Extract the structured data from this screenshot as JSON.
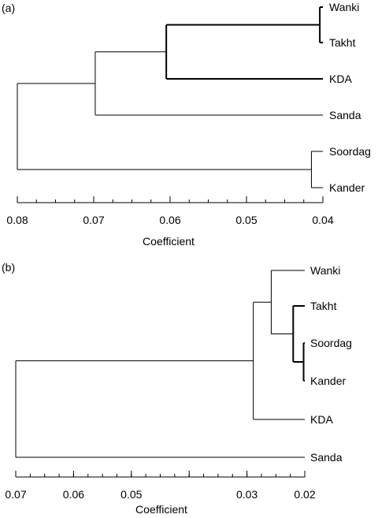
{
  "chart_data": [
    {
      "type": "dendrogram",
      "panel_label": "(a)",
      "xlabel": "Coefficient",
      "xlim": [
        0.08,
        0.04
      ],
      "ticks": [
        "0.08",
        "0.07",
        "0.06",
        "0.05",
        "0.04"
      ],
      "tick_values": [
        0.08,
        0.07,
        0.06,
        0.05,
        0.04
      ],
      "minor_step": 0.0025,
      "leaves": [
        "Wanki",
        "Takht",
        "KDA",
        "Sanda",
        "Soordag",
        "Kander"
      ],
      "merges": [
        {
          "id": "m1",
          "left": "Wanki",
          "right": "Takht",
          "height": 0.0404
        },
        {
          "id": "m2",
          "left": "Soordag",
          "right": "Kander",
          "height": 0.0415
        },
        {
          "id": "m3",
          "left": "m1",
          "right": "KDA",
          "height": 0.0605
        },
        {
          "id": "m4",
          "left": "m3",
          "right": "Sanda",
          "height": 0.0698
        },
        {
          "id": "m5",
          "left": "m4",
          "right": "m2",
          "height": 0.08
        }
      ]
    },
    {
      "type": "dendrogram",
      "panel_label": "(b)",
      "xlabel": "Coefficient",
      "xlim": [
        0.07,
        0.02
      ],
      "ticks": [
        "0.07",
        "0.06",
        "0.05",
        "0.03",
        "0.02"
      ],
      "tick_values": [
        0.07,
        0.06,
        0.05,
        0.04,
        0.03,
        0.02
      ],
      "tick_label_index": [
        0,
        1,
        2,
        4,
        5
      ],
      "minor_step": 0.0025,
      "leaves": [
        "Wanki",
        "Takht",
        "Soordag",
        "Kander",
        "KDA",
        "Sanda"
      ],
      "merges": [
        {
          "id": "n1",
          "left": "Soordag",
          "right": "Kander",
          "height": 0.0202
        },
        {
          "id": "n2",
          "left": "Takht",
          "right": "n1",
          "height": 0.022
        },
        {
          "id": "n3",
          "left": "Wanki",
          "right": "n2",
          "height": 0.0258
        },
        {
          "id": "n4",
          "left": "n3",
          "right": "KDA",
          "height": 0.0289
        },
        {
          "id": "n5",
          "left": "n4",
          "right": "Sanda",
          "height": 0.07
        }
      ]
    }
  ]
}
